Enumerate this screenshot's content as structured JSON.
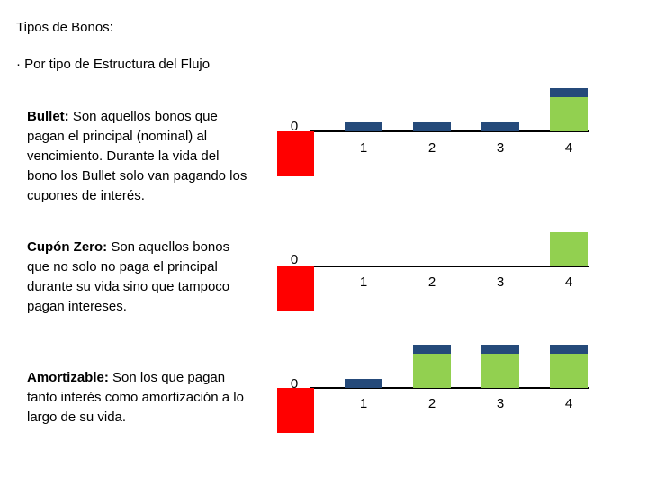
{
  "heading": "Tipos de Bonos:",
  "subheading": "· Por tipo de Estructura del Flujo",
  "colors": {
    "principal": "#92d050",
    "interest": "#254a7a",
    "outflow": "#ff0000",
    "axis": "#000000"
  },
  "diagrams": [
    {
      "id": "bullet",
      "term": "Bullet:",
      "description": " Son aquellos bonos que pagan el principal (nominal) al vencimiento. Durante la vida del bono los Bullet solo van pagando los cupones de interés.",
      "period_labels": [
        "0",
        "1",
        "2",
        "3",
        "4"
      ],
      "flows": [
        {
          "period": "1",
          "parts": [
            "interest"
          ]
        },
        {
          "period": "2",
          "parts": [
            "interest"
          ]
        },
        {
          "period": "3",
          "parts": [
            "interest"
          ]
        },
        {
          "period": "4",
          "parts": [
            "principal",
            "interest"
          ]
        }
      ]
    },
    {
      "id": "cupon-zero",
      "term": "Cupón Zero:",
      "description": " Son aquellos bonos que no solo no paga el principal durante su vida sino que tampoco pagan intereses.",
      "period_labels": [
        "0",
        "1",
        "2",
        "3",
        "4"
      ],
      "flows": [
        {
          "period": "4",
          "parts": [
            "principal"
          ]
        }
      ]
    },
    {
      "id": "amortizable",
      "term": "Amortizable:",
      "description": " Son los que pagan tanto interés como amortización a lo largo de su vida.",
      "period_labels": [
        "0",
        "1",
        "2",
        "3",
        "4"
      ],
      "flows": [
        {
          "period": "1",
          "parts": [
            "interest"
          ]
        },
        {
          "period": "2",
          "parts": [
            "principal",
            "interest"
          ]
        },
        {
          "period": "3",
          "parts": [
            "principal",
            "interest"
          ]
        },
        {
          "period": "4",
          "parts": [
            "principal",
            "interest"
          ]
        }
      ]
    }
  ]
}
